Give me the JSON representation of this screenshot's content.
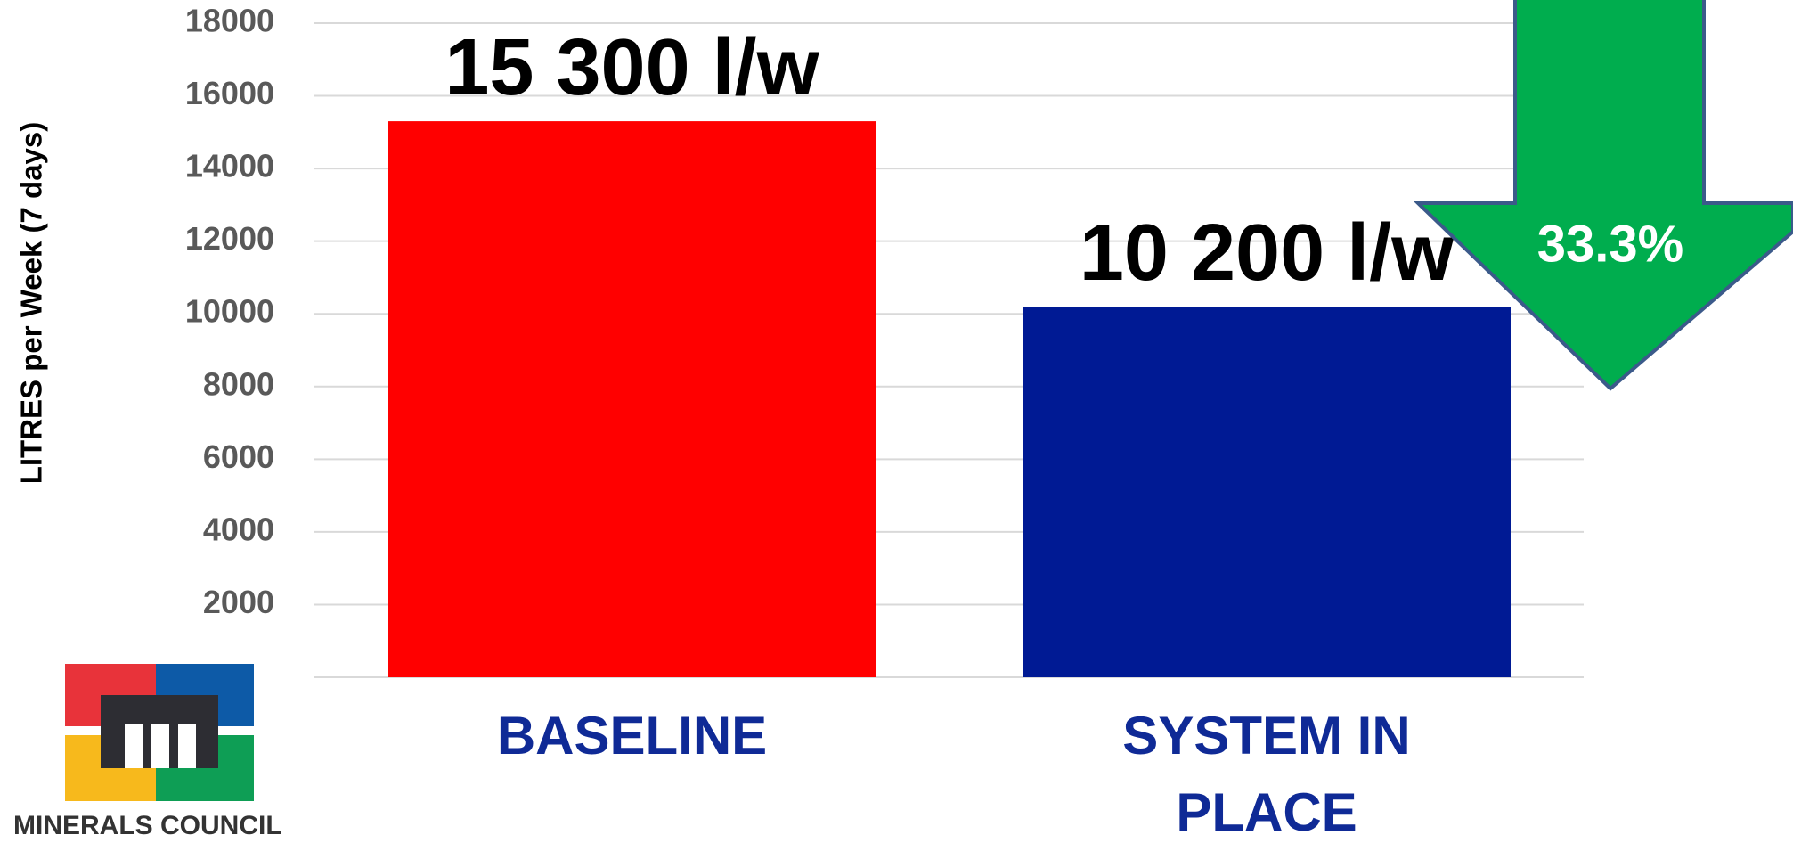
{
  "chart_data": {
    "type": "bar",
    "y_label": "LITRES per Week (7 days)",
    "categories": [
      "BASELINE",
      "SYSTEM IN PLACE"
    ],
    "values": [
      15300,
      10200
    ],
    "value_labels": [
      "15 300 l/w",
      "10 200 l/w"
    ],
    "colors": [
      "#ff0000",
      "#001a94"
    ],
    "ylim": [
      0,
      18000
    ],
    "yticks": [
      2000,
      4000,
      6000,
      8000,
      10000,
      12000,
      14000,
      16000,
      18000
    ],
    "grid": true,
    "annotation": "33.3%"
  },
  "logo": {
    "text": "MINERALS COUNCIL"
  }
}
